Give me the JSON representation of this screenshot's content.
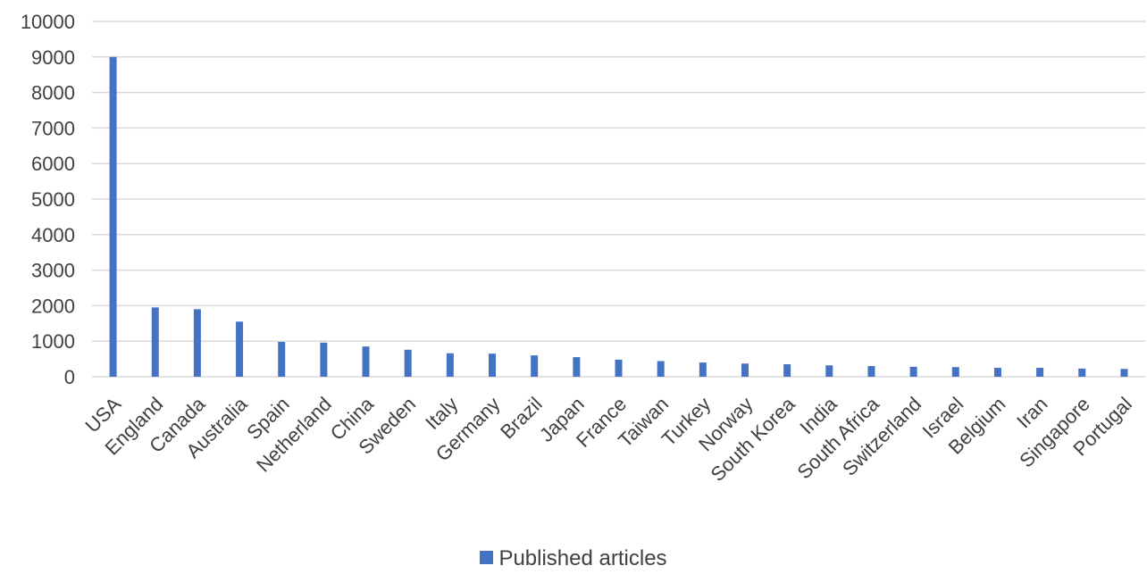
{
  "chart_data": {
    "type": "bar",
    "categories": [
      "USA",
      "England",
      "Canada",
      "Australia",
      "Spain",
      "Netherland",
      "China",
      "Sweden",
      "Italy",
      "Germany",
      "Brazil",
      "Japan",
      "France",
      "Taiwan",
      "Turkey",
      "Norway",
      "South Korea",
      "India",
      "South Africa",
      "Switzerland",
      "Israel",
      "Belgium",
      "Iran",
      "Singapore",
      "Portugal"
    ],
    "series": [
      {
        "name": "Published articles",
        "color": "#4472c4",
        "values": [
          9000,
          1950,
          1900,
          1550,
          980,
          960,
          850,
          760,
          660,
          650,
          600,
          550,
          480,
          440,
          400,
          370,
          350,
          320,
          300,
          280,
          270,
          250,
          250,
          230,
          220
        ]
      }
    ],
    "ylim": [
      0,
      10000
    ],
    "yticks": [
      "0",
      "1000",
      "2000",
      "3000",
      "4000",
      "5000",
      "6000",
      "7000",
      "8000",
      "9000",
      "10000"
    ],
    "grid": true,
    "legend_position": "bottom"
  }
}
